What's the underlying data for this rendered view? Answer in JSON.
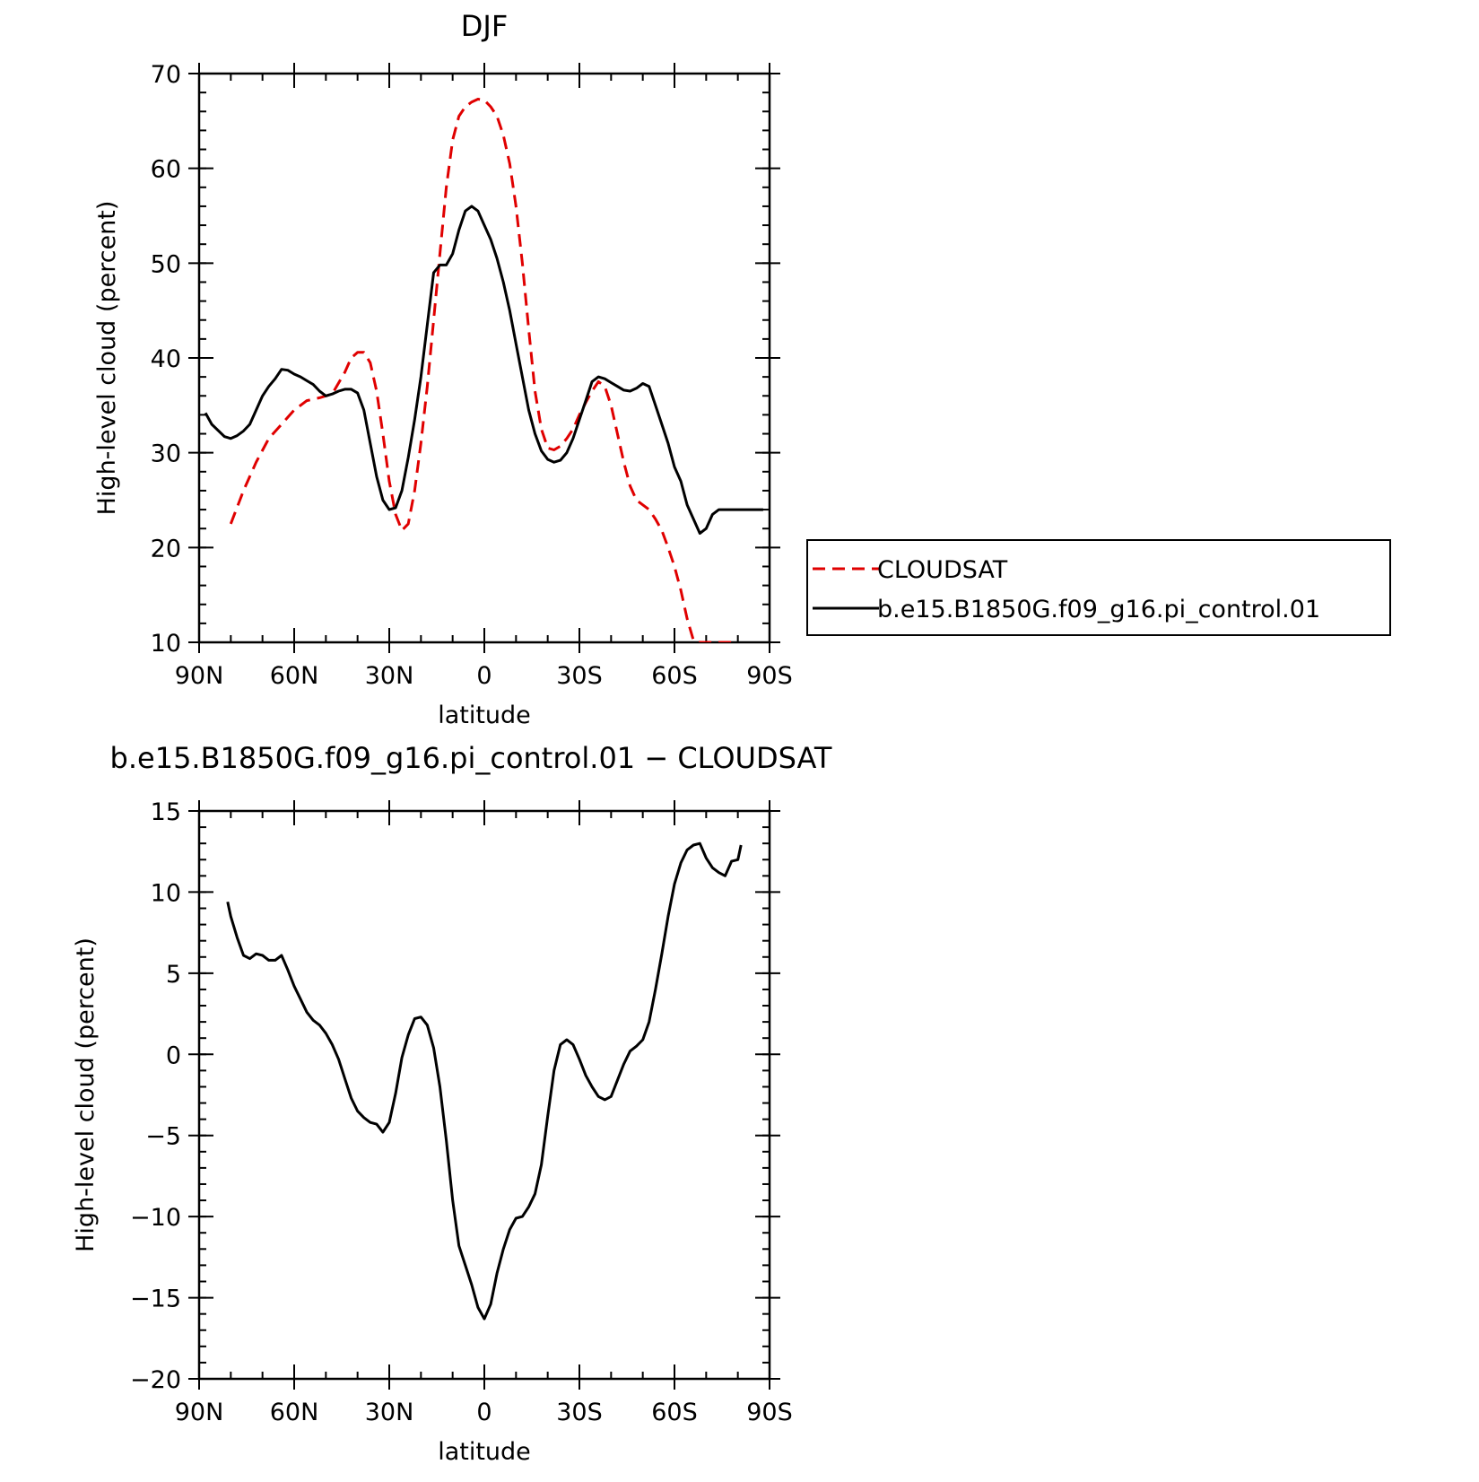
{
  "chart_data": [
    {
      "type": "line",
      "title": "DJF",
      "xlabel": "latitude",
      "ylabel": "High-level cloud (percent)",
      "xlim": [
        90,
        -90
      ],
      "ylim": [
        10,
        70
      ],
      "x_ticks": [
        90,
        60,
        30,
        0,
        -30,
        -60,
        -90
      ],
      "x_tick_labels": [
        "90N",
        "60N",
        "30N",
        "0",
        "30S",
        "60S",
        "90S"
      ],
      "y_ticks": [
        10,
        20,
        30,
        40,
        50,
        60,
        70
      ],
      "y_tick_labels": [
        "10",
        "20",
        "30",
        "40",
        "50",
        "60",
        "70"
      ],
      "legend_position": "right",
      "series": [
        {
          "name": "CLOUDSAT",
          "color": "#e00000",
          "dash": "dashed",
          "x": [
            80,
            76,
            72,
            68,
            64,
            60,
            56,
            52,
            48,
            44,
            42,
            40,
            38,
            36,
            34,
            32,
            30,
            28,
            26,
            24,
            22,
            20,
            18,
            16,
            14,
            12,
            10,
            8,
            6,
            4,
            2,
            0,
            -2,
            -4,
            -6,
            -8,
            -10,
            -12,
            -14,
            -16,
            -18,
            -20,
            -22,
            -24,
            -26,
            -28,
            -30,
            -32,
            -34,
            -36,
            -38,
            -40,
            -42,
            -44,
            -46,
            -48,
            -50,
            -52,
            -54,
            -56,
            -58,
            -60,
            -62,
            -64,
            -66,
            -68,
            -70,
            -72,
            -74,
            -76,
            -78,
            -80
          ],
          "y": [
            22.5,
            26,
            29,
            31.5,
            33,
            34.5,
            35.5,
            35.8,
            36.2,
            38.5,
            40,
            40.6,
            40.6,
            39.5,
            36.5,
            32,
            27,
            23.5,
            21.8,
            22.5,
            26,
            31,
            37,
            44,
            51,
            58,
            63,
            65.5,
            66.5,
            67,
            67.3,
            67.2,
            66.5,
            65.5,
            63.5,
            60.5,
            56,
            50,
            43,
            36.5,
            32.5,
            30.5,
            30.3,
            30.7,
            31.5,
            32.5,
            34,
            35.3,
            36.5,
            37.5,
            37,
            35,
            32,
            29,
            26.5,
            25,
            24.5,
            24,
            23,
            21.8,
            20,
            18,
            15.5,
            12.5,
            10.2,
            10,
            10,
            10,
            10,
            10,
            10,
            10
          ]
        },
        {
          "name": "b.e15.B1850G.f09_g16.pi_control.01",
          "color": "#000000",
          "dash": "solid",
          "x": [
            88,
            86,
            82,
            80,
            78,
            76,
            74,
            72,
            70,
            68,
            66,
            64,
            62,
            60,
            58,
            56,
            54,
            52,
            50,
            48,
            46,
            44,
            42,
            40,
            38,
            36,
            34,
            32,
            30,
            28,
            26,
            24,
            22,
            20,
            18,
            16,
            14,
            12,
            10,
            8,
            6,
            4,
            2,
            0,
            -2,
            -4,
            -6,
            -8,
            -10,
            -12,
            -14,
            -16,
            -18,
            -20,
            -22,
            -24,
            -26,
            -28,
            -30,
            -32,
            -34,
            -36,
            -38,
            -40,
            -42,
            -44,
            -46,
            -48,
            -50,
            -52,
            -54,
            -56,
            -58,
            -60,
            -62,
            -64,
            -66,
            -68,
            -70,
            -72,
            -74,
            -76,
            -78,
            -80,
            -82,
            -84,
            -86,
            -88
          ],
          "y": [
            34.2,
            33,
            31.7,
            31.5,
            31.8,
            32.3,
            33,
            34.5,
            36,
            37,
            37.8,
            38.8,
            38.7,
            38.3,
            38,
            37.6,
            37.2,
            36.5,
            36,
            36.2,
            36.5,
            36.7,
            36.7,
            36.3,
            34.5,
            31,
            27.5,
            25,
            24,
            24.2,
            26,
            29.5,
            33.5,
            38,
            43.5,
            49,
            49.8,
            49.8,
            51,
            53.5,
            55.5,
            56,
            55.5,
            54,
            52.5,
            50.5,
            48,
            45,
            41.5,
            38,
            34.5,
            32,
            30.2,
            29.3,
            29,
            29.2,
            30,
            31.5,
            33.5,
            35.5,
            37.5,
            38,
            37.8,
            37.4,
            37,
            36.6,
            36.5,
            36.8,
            37.3,
            37,
            35,
            33,
            31,
            28.5,
            27,
            24.5,
            23,
            21.5,
            22,
            23.5,
            24,
            24,
            24,
            24,
            24,
            24,
            24,
            24
          ]
        }
      ]
    },
    {
      "type": "line",
      "title": "b.e15.B1850G.f09_g16.pi_control.01 − CLOUDSAT",
      "xlabel": "latitude",
      "ylabel": "High-level cloud (percent)",
      "xlim": [
        90,
        -90
      ],
      "ylim": [
        -20,
        15
      ],
      "x_ticks": [
        90,
        60,
        30,
        0,
        -30,
        -60,
        -90
      ],
      "x_tick_labels": [
        "90N",
        "60N",
        "30N",
        "0",
        "30S",
        "60S",
        "90S"
      ],
      "y_ticks": [
        -20,
        -15,
        -10,
        -5,
        0,
        5,
        10,
        15
      ],
      "y_tick_labels": [
        "−20",
        "−15",
        "−10",
        "−5",
        "0",
        "5",
        "10",
        "15"
      ],
      "series": [
        {
          "color": "#000000",
          "dash": "solid",
          "x": [
            81,
            80,
            78,
            76,
            74,
            72,
            70,
            68,
            66,
            64,
            62,
            60,
            58,
            56,
            54,
            52,
            50,
            48,
            46,
            44,
            42,
            40,
            38,
            36,
            34,
            32,
            30,
            28,
            26,
            24,
            22,
            20,
            18,
            16,
            14,
            12,
            10,
            8,
            6,
            4,
            2,
            0,
            -2,
            -4,
            -6,
            -8,
            -10,
            -12,
            -14,
            -16,
            -18,
            -20,
            -22,
            -24,
            -26,
            -28,
            -30,
            -32,
            -34,
            -36,
            -38,
            -40,
            -42,
            -44,
            -46,
            -48,
            -50,
            -52,
            -54,
            -56,
            -58,
            -60,
            -62,
            -64,
            -66,
            -68,
            -70,
            -72,
            -74,
            -76,
            -78,
            -80,
            -81
          ],
          "y": [
            9.4,
            8.5,
            7.2,
            6.1,
            5.9,
            6.2,
            6.1,
            5.8,
            5.8,
            6.1,
            5.2,
            4.2,
            3.4,
            2.6,
            2.1,
            1.8,
            1.3,
            0.6,
            -0.3,
            -1.5,
            -2.7,
            -3.5,
            -3.9,
            -4.2,
            -4.3,
            -4.8,
            -4.2,
            -2.4,
            -0.2,
            1.2,
            2.2,
            2.3,
            1.8,
            0.4,
            -2,
            -5.3,
            -9,
            -11.8,
            -13,
            -14.2,
            -15.6,
            -16.3,
            -15.4,
            -13.5,
            -12,
            -10.8,
            -10.1,
            -10,
            -9.4,
            -8.6,
            -6.8,
            -3.8,
            -1,
            0.6,
            0.9,
            0.6,
            -0.3,
            -1.3,
            -2,
            -2.6,
            -2.8,
            -2.6,
            -1.6,
            -0.6,
            0.2,
            0.5,
            0.9,
            2,
            4,
            6.2,
            8.5,
            10.5,
            11.8,
            12.6,
            12.9,
            13,
            12.1,
            11.5,
            11.2,
            11,
            11.9,
            12,
            12.9
          ]
        }
      ]
    }
  ]
}
